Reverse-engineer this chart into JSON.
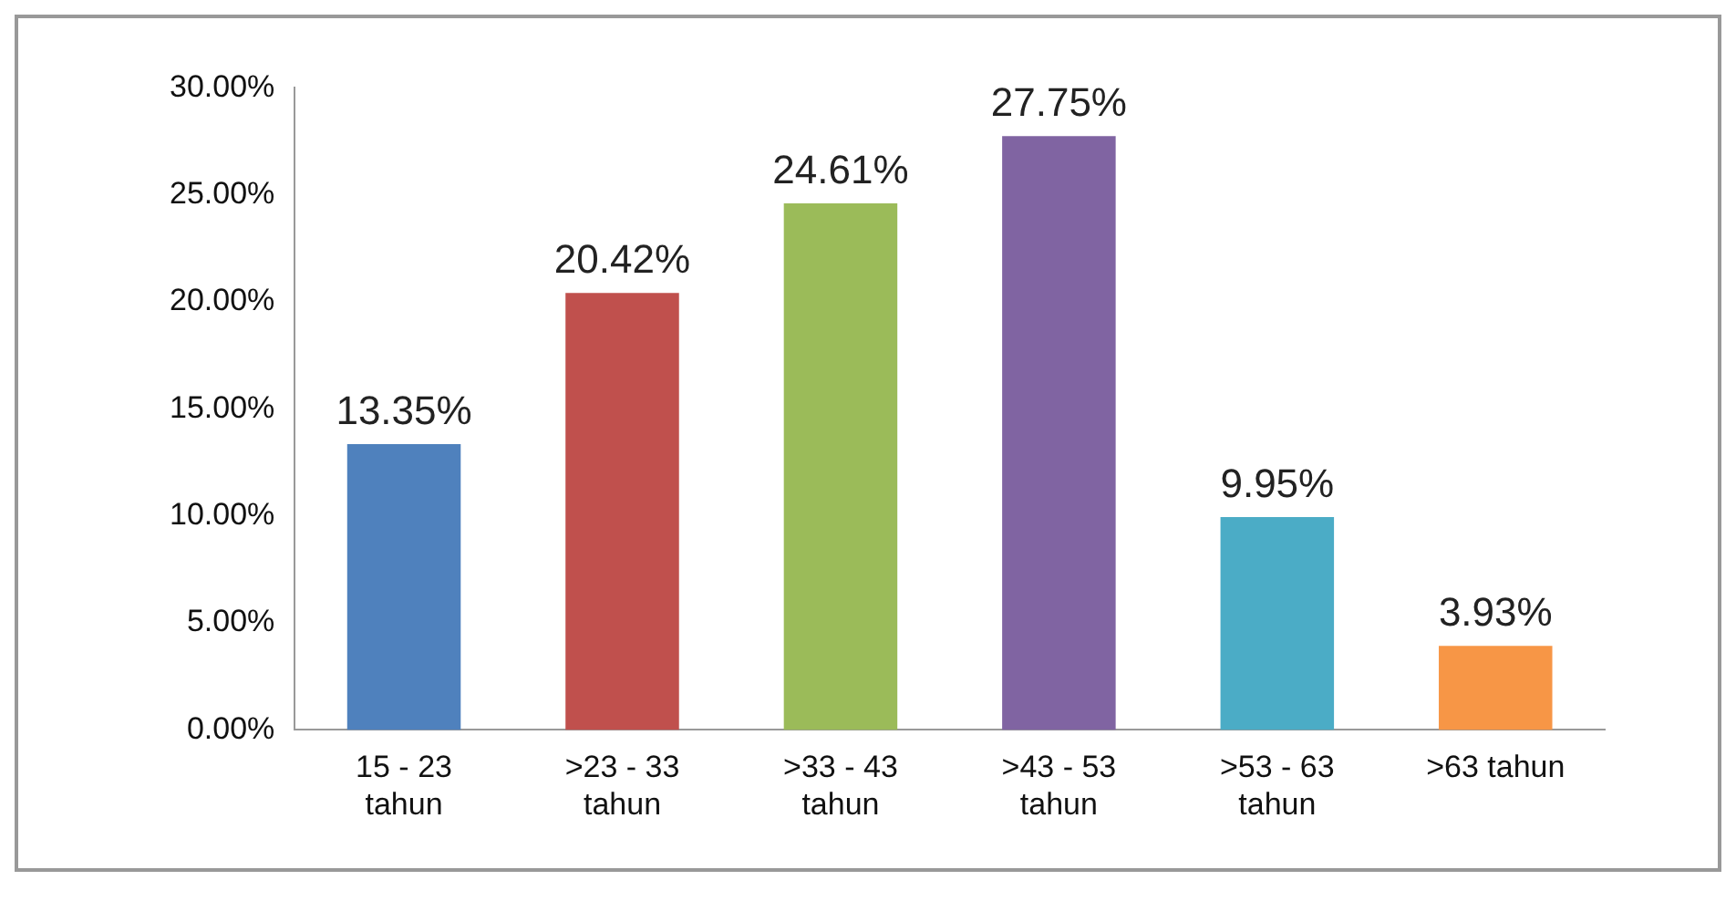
{
  "chart_data": {
    "type": "bar",
    "categories": [
      "15 - 23 tahun",
      ">23 - 33 tahun",
      ">33 - 43 tahun",
      ">43 - 53 tahun",
      ">53 - 63 tahun",
      ">63 tahun"
    ],
    "values": [
      13.35,
      20.42,
      24.61,
      27.75,
      9.95,
      3.93
    ],
    "colors": [
      "#4f81bd",
      "#c0504d",
      "#9bbb59",
      "#8064a2",
      "#4bacc6",
      "#f79646"
    ],
    "value_labels": [
      "13.35%",
      "20.42%",
      "24.61%",
      "27.75%",
      "9.95%",
      "3.93%"
    ],
    "ylim": [
      0,
      30
    ],
    "yticks": [
      {
        "value": 0,
        "label": "0.00%"
      },
      {
        "value": 5,
        "label": "5.00%"
      },
      {
        "value": 10,
        "label": "10.00%"
      },
      {
        "value": 15,
        "label": "15.00%"
      },
      {
        "value": 20,
        "label": "20.00%"
      },
      {
        "value": 25,
        "label": "25.00%"
      },
      {
        "value": 30,
        "label": "30.00%"
      }
    ],
    "grid": false,
    "legend": false
  }
}
